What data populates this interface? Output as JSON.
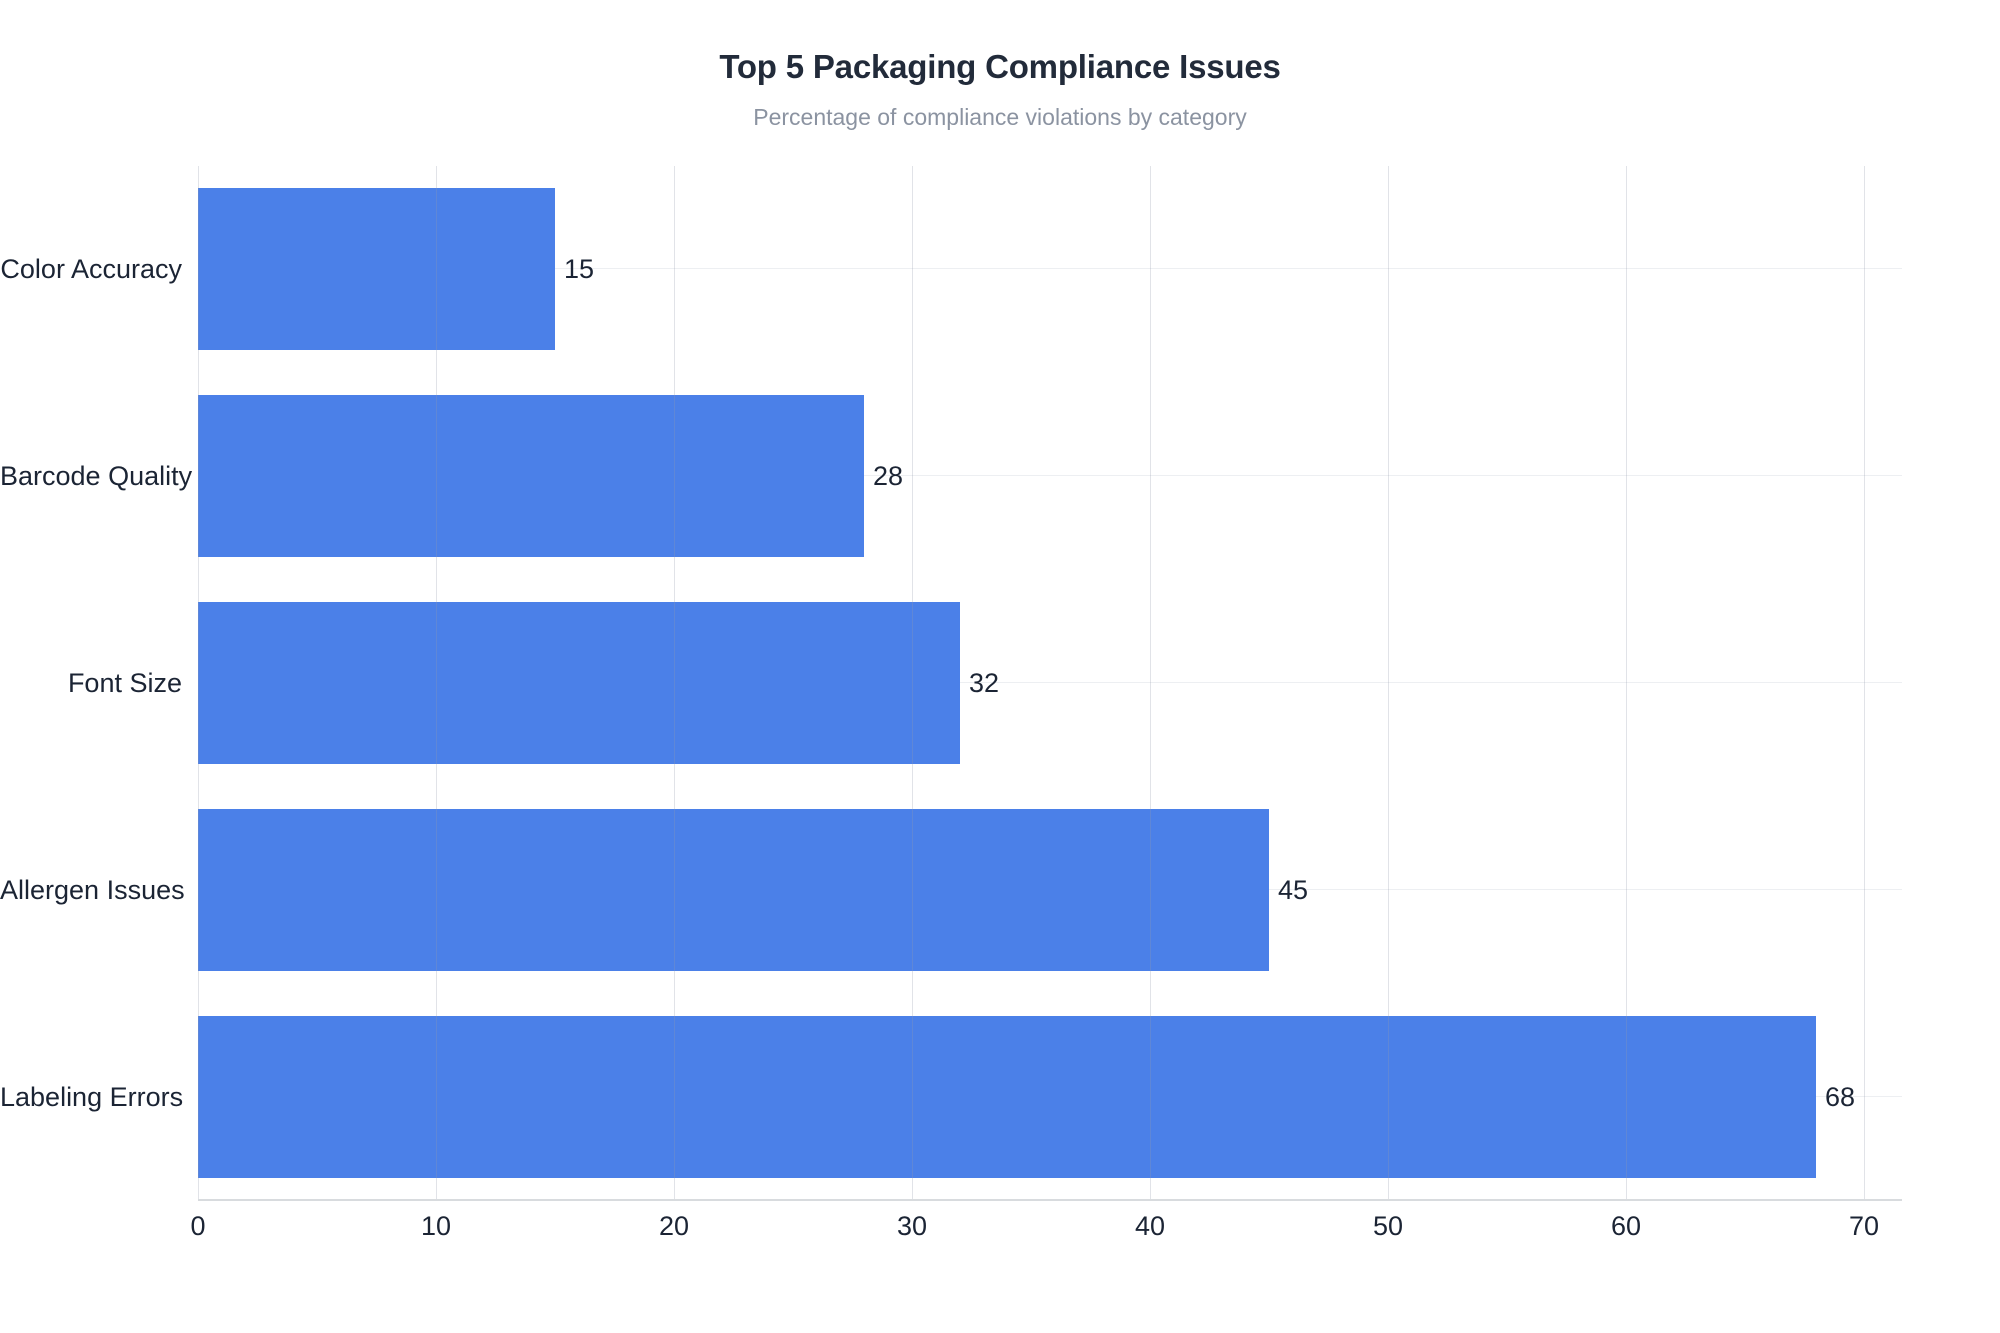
{
  "chart_data": {
    "type": "bar",
    "orientation": "horizontal",
    "title": "Top 5 Packaging Compliance Issues",
    "subtitle": "Percentage of compliance violations by category",
    "categories": [
      "Color Accuracy",
      "Barcode Quality",
      "Font Size",
      "Allergen Issues",
      "Labeling Errors"
    ],
    "values": [
      15,
      28,
      32,
      45,
      68
    ],
    "x_ticks": [
      0,
      10,
      20,
      30,
      40,
      50,
      60,
      70
    ],
    "xlim": [
      0,
      71.6
    ],
    "xlabel": "",
    "ylabel": "",
    "grid": true,
    "legend": "none",
    "value_labels_shown": true
  },
  "colors": {
    "bar": "#4b80e8",
    "title_text": "#222b3a",
    "subtitle_text": "#8b93a1",
    "axis_text": "#1b2434",
    "vertical_gridline": "#e4e7ec",
    "horizontal_gridline": "#edeff2",
    "axis_line": "#d8dbde",
    "background": "#ffffff"
  }
}
